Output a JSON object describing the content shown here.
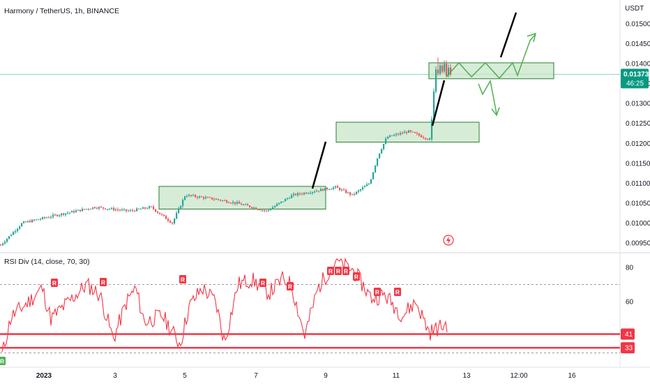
{
  "header": {
    "symbol_title": "Harmony / TetherUS, 1h, BINANCE",
    "currency": "USDT"
  },
  "price_axis": {
    "ticks": [
      "0.01500",
      "0.01450",
      "0.01400",
      "0.01350",
      "0.01300",
      "0.01250",
      "0.01200",
      "0.01150",
      "0.01100",
      "0.01050",
      "0.01000",
      "0.00950"
    ],
    "last_price": "0.01373",
    "countdown": "46:25"
  },
  "time_axis": {
    "labels": [
      "2023",
      "3",
      "5",
      "7",
      "9",
      "11",
      "13",
      "12:00",
      "16"
    ]
  },
  "rsi_panel": {
    "title": "RSI Div (14, close, 70, 30)",
    "ticks": [
      "80",
      "60"
    ],
    "levels": [
      "41",
      "33"
    ],
    "bear_marker": "R",
    "bull_marker": "R"
  },
  "colors": {
    "up": "#26a69a",
    "down": "#ef5350",
    "box_fill": "#c8e6c9",
    "box_stroke": "#2e7d32",
    "rsi_line": "#f23645",
    "last_price_tag": "#089981",
    "projection": "#4caf50"
  },
  "chart_data": [
    {
      "type": "candlestick",
      "title": "Harmony / TetherUS, 1h, BINANCE",
      "ylabel": "USDT",
      "ylim": [
        0.0093,
        0.0154
      ],
      "x": [
        "2023",
        "3",
        "5",
        "7",
        "9",
        "11",
        "13",
        "12:00",
        "16"
      ],
      "anchors": [
        {
          "t": 0.0,
          "price": 0.00945
        },
        {
          "t": 0.05,
          "price": 0.01
        },
        {
          "t": 0.13,
          "price": 0.0102
        },
        {
          "t": 0.22,
          "price": 0.0104
        },
        {
          "t": 0.3,
          "price": 0.0103
        },
        {
          "t": 0.35,
          "price": 0.0104
        },
        {
          "t": 0.4,
          "price": 0.01
        },
        {
          "t": 0.43,
          "price": 0.0107
        },
        {
          "t": 0.5,
          "price": 0.0106
        },
        {
          "t": 0.55,
          "price": 0.0105
        },
        {
          "t": 0.62,
          "price": 0.0103
        },
        {
          "t": 0.68,
          "price": 0.0107
        },
        {
          "t": 0.73,
          "price": 0.0108
        },
        {
          "t": 0.78,
          "price": 0.0109
        },
        {
          "t": 0.82,
          "price": 0.0107
        },
        {
          "t": 0.86,
          "price": 0.011
        },
        {
          "t": 0.88,
          "price": 0.0117
        },
        {
          "t": 0.9,
          "price": 0.01215
        },
        {
          "t": 0.95,
          "price": 0.0123
        },
        {
          "t": 1.0,
          "price": 0.0121
        }
      ],
      "jump": {
        "price_from": 0.0121,
        "price_to": 0.01385
      },
      "zones": [
        {
          "name": "consolidation-1",
          "low": 0.01035,
          "high": 0.01092
        },
        {
          "name": "consolidation-2",
          "low": 0.01203,
          "high": 0.01253
        },
        {
          "name": "consolidation-3",
          "low": 0.01362,
          "high": 0.01402
        }
      ],
      "last_price": 0.01373
    },
    {
      "type": "line",
      "title": "RSI Div (14, close, 70, 30)",
      "ylim": [
        26,
        86
      ],
      "levels": [
        41,
        33
      ],
      "anchors": [
        {
          "t": 0.0,
          "v": 29
        },
        {
          "t": 0.02,
          "v": 51
        },
        {
          "t": 0.06,
          "v": 60
        },
        {
          "t": 0.09,
          "v": 68
        },
        {
          "t": 0.11,
          "v": 50
        },
        {
          "t": 0.15,
          "v": 60
        },
        {
          "t": 0.19,
          "v": 70
        },
        {
          "t": 0.22,
          "v": 64
        },
        {
          "t": 0.25,
          "v": 38
        },
        {
          "t": 0.28,
          "v": 60
        },
        {
          "t": 0.3,
          "v": 68
        },
        {
          "t": 0.32,
          "v": 48
        },
        {
          "t": 0.36,
          "v": 52
        },
        {
          "t": 0.4,
          "v": 35
        },
        {
          "t": 0.42,
          "v": 57
        },
        {
          "t": 0.45,
          "v": 68
        },
        {
          "t": 0.48,
          "v": 60
        },
        {
          "t": 0.5,
          "v": 36
        },
        {
          "t": 0.53,
          "v": 70
        },
        {
          "t": 0.56,
          "v": 73
        },
        {
          "t": 0.6,
          "v": 65
        },
        {
          "t": 0.63,
          "v": 73
        },
        {
          "t": 0.65,
          "v": 70
        },
        {
          "t": 0.68,
          "v": 40
        },
        {
          "t": 0.71,
          "v": 68
        },
        {
          "t": 0.75,
          "v": 84
        },
        {
          "t": 0.79,
          "v": 78
        },
        {
          "t": 0.83,
          "v": 62
        },
        {
          "t": 0.86,
          "v": 64
        },
        {
          "t": 0.9,
          "v": 52
        },
        {
          "t": 0.93,
          "v": 60
        },
        {
          "t": 0.96,
          "v": 42
        },
        {
          "t": 1.0,
          "v": 47
        }
      ]
    }
  ]
}
